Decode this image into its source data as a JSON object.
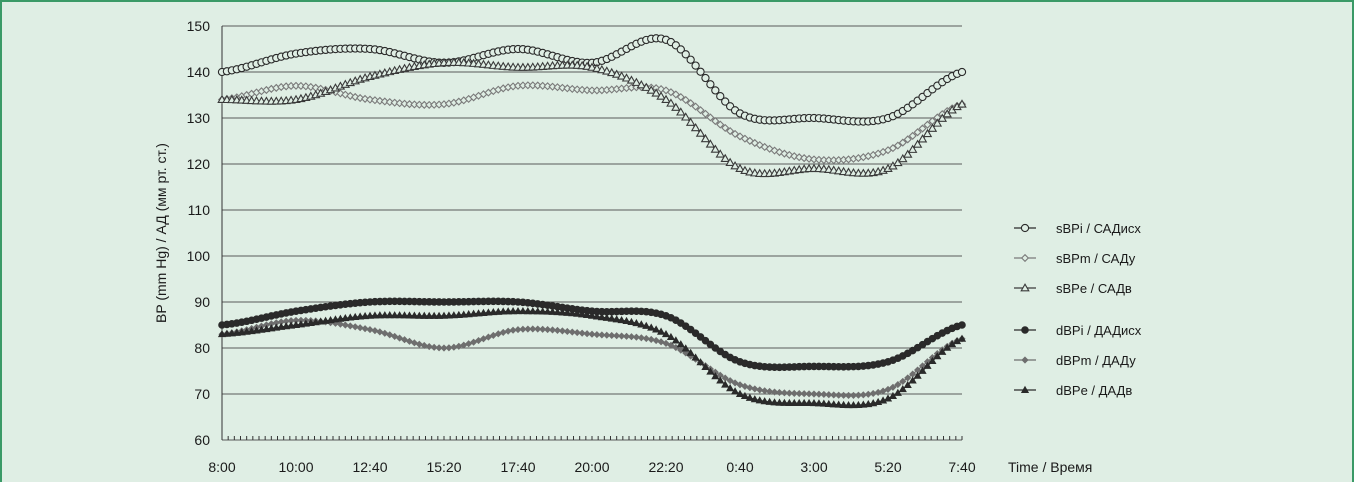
{
  "chart_data": {
    "type": "line",
    "ylabel": "BP (mm Hg) / АД (мм рт. ст.)",
    "xlabel": "Time / Время",
    "ylim": [
      60,
      150
    ],
    "yticks": [
      60,
      70,
      80,
      90,
      100,
      110,
      120,
      130,
      140,
      150
    ],
    "x": [
      "8:00",
      "10:00",
      "12:40",
      "15:20",
      "17:40",
      "20:00",
      "22:20",
      "0:40",
      "3:00",
      "5:20",
      "7:40"
    ],
    "grid": "horizontal",
    "legend_position": "right",
    "series": [
      {
        "name": "sBPi / САДисх",
        "marker": "circle-open",
        "color": "#2a2a2a",
        "values": [
          140,
          144,
          145,
          142,
          145,
          142,
          147,
          131,
          130,
          130,
          140
        ]
      },
      {
        "name": "sBPm / САДу",
        "marker": "diamond-open",
        "color": "#7a7a7a",
        "values": [
          134,
          137,
          134,
          133,
          137,
          136,
          136,
          126,
          121,
          123,
          133
        ]
      },
      {
        "name": "sBPe / САДв",
        "marker": "triangle-open",
        "color": "#3a3a3a",
        "values": [
          134,
          134,
          139,
          142,
          141,
          141,
          134,
          119,
          119,
          119,
          133
        ]
      },
      {
        "name": "dBPi / ДАДисх",
        "marker": "circle",
        "color": "#2a2a2a",
        "values": [
          85,
          88,
          90,
          90,
          90,
          88,
          87,
          77,
          76,
          77,
          85
        ]
      },
      {
        "name": "dBPm / ДАДу",
        "marker": "diamond",
        "color": "#6e6e6e",
        "values": [
          83,
          86,
          84,
          80,
          84,
          83,
          81,
          72,
          70,
          71,
          82
        ]
      },
      {
        "name": "dBPe / ДАДв",
        "marker": "triangle",
        "color": "#2a2a2a",
        "values": [
          83,
          85,
          87,
          87,
          88,
          87,
          83,
          70,
          68,
          69,
          82
        ]
      }
    ]
  }
}
